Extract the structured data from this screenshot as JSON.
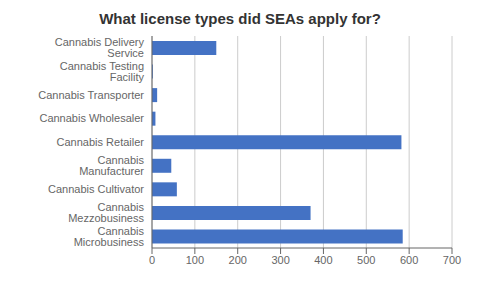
{
  "chart_data": {
    "type": "bar",
    "title": "What license types did SEAs apply for?",
    "orientation": "horizontal",
    "categories": [
      "Cannabis Microbusiness",
      "Cannabis Mezzobusiness",
      "Cannabis Cultivator",
      "Cannabis Manufacturer",
      "Cannabis Retailer",
      "Cannabis Wholesaler",
      "Cannabis Transporter",
      "Cannabis Testing Facility",
      "Cannabis Delivery Service"
    ],
    "values": [
      585,
      370,
      58,
      45,
      582,
      8,
      12,
      2,
      150
    ],
    "color": "#4472C4",
    "xlim": [
      0,
      700
    ],
    "xticks": [
      0,
      100,
      200,
      300,
      400,
      500,
      600,
      700
    ],
    "grid": true
  }
}
